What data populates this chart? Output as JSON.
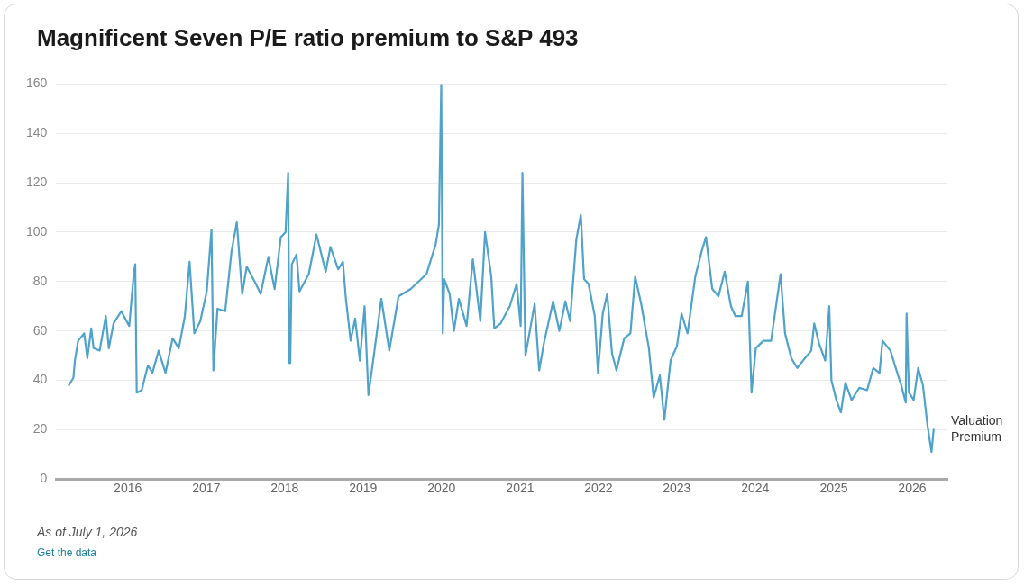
{
  "chart_data": {
    "type": "line",
    "title": "Magnificent Seven P/E ratio premium to S&P 493",
    "x": [
      "2015-04-02",
      "2015-04-23",
      "2015-04-30",
      "2015-05-15",
      "2015-06-12",
      "2015-06-27",
      "2015-07-15",
      "2015-07-26",
      "2015-08-23",
      "2015-09-21",
      "2015-10-05",
      "2015-10-27",
      "2015-12-02",
      "2016-01-08",
      "2016-01-29",
      "2016-02-05",
      "2016-02-12",
      "2016-03-06",
      "2016-04-04",
      "2016-04-25",
      "2016-05-24",
      "2016-06-25",
      "2016-07-28",
      "2016-08-26",
      "2016-09-23",
      "2016-10-15",
      "2016-11-06",
      "2016-12-04",
      "2017-01-03",
      "2017-01-25",
      "2017-02-03",
      "2017-02-22",
      "2017-03-30",
      "2017-04-28",
      "2017-05-23",
      "2017-06-17",
      "2017-07-08",
      "2017-08-20",
      "2017-09-11",
      "2017-10-17",
      "2017-11-15",
      "2017-12-14",
      "2018-01-05",
      "2018-01-17",
      "2018-01-23",
      "2018-01-27",
      "2018-02-03",
      "2018-02-25",
      "2018-03-11",
      "2018-04-23",
      "2018-05-29",
      "2018-07-11",
      "2018-08-02",
      "2018-09-07",
      "2018-09-29",
      "2018-10-13",
      "2018-11-04",
      "2018-11-25",
      "2018-12-17",
      "2019-01-08",
      "2019-01-26",
      "2019-02-20",
      "2019-03-27",
      "2019-05-03",
      "2019-06-15",
      "2019-08-11",
      "2019-10-23",
      "2019-12-05",
      "2019-12-20",
      "2019-12-31",
      "2020-01-07",
      "2020-01-14",
      "2020-02-08",
      "2020-02-28",
      "2020-03-22",
      "2020-04-27",
      "2020-05-26",
      "2020-06-30",
      "2020-07-22",
      "2020-08-20",
      "2020-09-03",
      "2020-10-02",
      "2020-11-14",
      "2020-12-16",
      "2021-01-04",
      "2021-01-12",
      "2021-01-26",
      "2021-03-10",
      "2021-03-31",
      "2021-04-22",
      "2021-06-04",
      "2021-07-03",
      "2021-07-31",
      "2021-08-22",
      "2021-09-20",
      "2021-10-11",
      "2021-10-26",
      "2021-11-16",
      "2021-12-15",
      "2021-12-30",
      "2022-01-21",
      "2022-02-11",
      "2022-03-05",
      "2022-03-26",
      "2022-05-01",
      "2022-05-30",
      "2022-06-21",
      "2022-07-19",
      "2022-08-24",
      "2022-09-15",
      "2022-10-14",
      "2022-11-04",
      "2022-12-03",
      "2023-01-02",
      "2023-01-23",
      "2023-02-20",
      "2023-03-28",
      "2023-04-26",
      "2023-05-17",
      "2023-06-15",
      "2023-07-14",
      "2023-08-12",
      "2023-09-10",
      "2023-10-01",
      "2023-10-30",
      "2023-11-28",
      "2023-12-15",
      "2024-01-04",
      "2024-02-08",
      "2024-03-15",
      "2024-04-28",
      "2024-05-19",
      "2024-06-17",
      "2024-07-15",
      "2024-08-20",
      "2024-09-18",
      "2024-10-02",
      "2024-10-24",
      "2024-11-22",
      "2024-12-11",
      "2024-12-21",
      "2025-01-13",
      "2025-02-03",
      "2025-02-24",
      "2025-03-25",
      "2025-04-30",
      "2025-06-05",
      "2025-07-04",
      "2025-08-02",
      "2025-08-16",
      "2025-09-22",
      "2025-10-20",
      "2025-11-11",
      "2025-12-02",
      "2025-12-06",
      "2025-12-17",
      "2026-01-08",
      "2026-01-29",
      "2026-02-20",
      "2026-03-13",
      "2026-04-01",
      "2026-04-11"
    ],
    "series": [
      {
        "name": "Valuation Premium",
        "color": "#4fa3cb",
        "values": [
          38,
          41,
          48,
          56,
          59,
          49,
          61,
          53,
          52,
          66,
          53,
          63,
          68,
          62,
          83,
          87,
          35,
          36,
          46,
          43,
          52,
          43,
          57,
          53,
          66,
          88,
          59,
          64,
          76,
          101,
          44,
          69,
          68,
          92,
          104,
          75,
          86,
          79,
          75,
          90,
          77,
          98,
          100,
          124,
          47,
          47,
          87,
          91,
          76,
          83,
          99,
          84,
          94,
          85,
          88,
          73,
          56,
          65,
          48,
          70,
          34,
          50,
          73,
          52,
          74,
          77,
          83,
          95,
          103,
          160,
          59,
          81,
          75,
          60,
          73,
          62,
          89,
          64,
          100,
          82,
          61,
          63,
          70,
          79,
          62,
          124,
          50,
          71,
          44,
          55,
          72,
          60,
          72,
          64,
          97,
          107,
          81,
          79,
          66,
          43,
          67,
          75,
          51,
          44,
          57,
          59,
          82,
          71,
          53,
          33,
          42,
          24,
          48,
          54,
          67,
          59,
          82,
          92,
          98,
          77,
          74,
          84,
          70,
          66,
          66,
          80,
          35,
          53,
          56,
          56,
          83,
          59,
          49,
          45,
          49,
          52,
          63,
          55,
          48,
          70,
          40,
          32,
          27,
          39,
          32,
          37,
          36,
          45,
          43,
          56,
          52,
          44,
          38,
          31,
          67,
          35,
          32,
          45,
          38,
          22,
          11,
          20
        ]
      }
    ],
    "xlim": [
      "2015-02-02",
      "2026-06-14"
    ],
    "xticks": [
      "2016",
      "2017",
      "2018",
      "2019",
      "2020",
      "2021",
      "2022",
      "2023",
      "2024",
      "2025",
      "2026"
    ],
    "ylim": [
      0,
      160
    ],
    "yticks": [
      0,
      20,
      40,
      60,
      80,
      100,
      120,
      140,
      160
    ],
    "grid": "y",
    "marker": "none",
    "line_style": "solid",
    "annotations": [
      "As of July 1, 2026",
      "Get the data"
    ]
  }
}
